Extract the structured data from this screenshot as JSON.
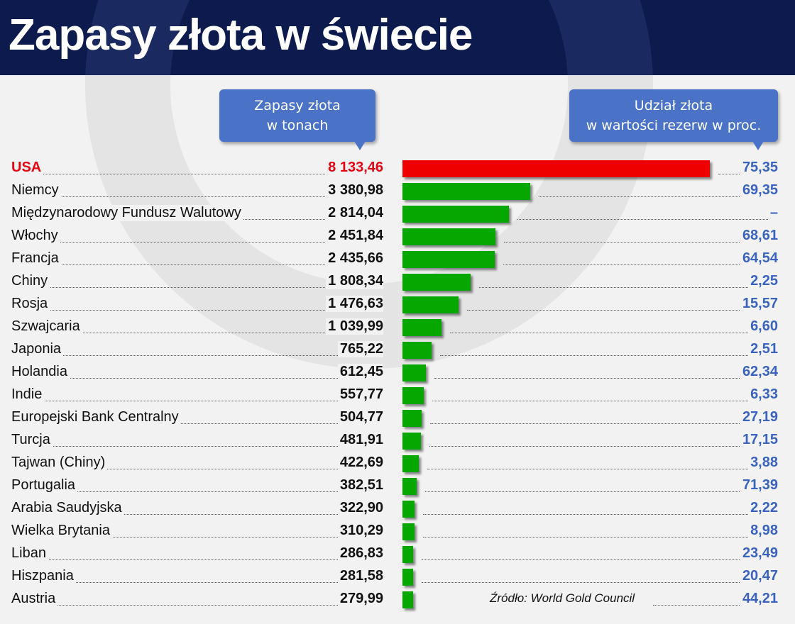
{
  "title": "Zapasy złota w świecie",
  "callouts": {
    "left": [
      "Zapasy złota",
      "w tonach"
    ],
    "right": [
      "Udział złota",
      "w wartości rezerw w proc."
    ]
  },
  "source": "Źródło: World Gold Council",
  "colors": {
    "header_bg": "#0d1a4e",
    "bar_default": "#06a800",
    "bar_highlight": "#ee0000",
    "highlight_text": "#e30613",
    "share_text": "#3a63c0",
    "callout_bg": "#4a73c8"
  },
  "chart_data": {
    "type": "bar",
    "orientation": "horizontal",
    "categories": [
      "USA",
      "Niemcy",
      "Międzynarodowy Fundusz Walutowy",
      "Włochy",
      "Francja",
      "Chiny",
      "Rosja",
      "Szwajcaria",
      "Japonia",
      "Holandia",
      "Indie",
      "Europejski Bank Centralny",
      "Turcja",
      "Tajwan (Chiny)",
      "Portugalia",
      "Arabia Saudyjska",
      "Wielka Brytania",
      "Liban",
      "Hiszpania",
      "Austria"
    ],
    "series": [
      {
        "values": [
          8133.46,
          3380.98,
          2814.04,
          2451.84,
          2435.66,
          1808.34,
          1476.63,
          1039.99,
          765.22,
          612.45,
          557.77,
          504.77,
          481.91,
          422.69,
          382.51,
          322.9,
          310.29,
          286.83,
          281.58,
          279.99
        ],
        "labels": [
          "8 133,46",
          "3 380,98",
          "2 814,04",
          "2 451,84",
          "2 435,66",
          "1 808,34",
          "1 476,63",
          "1 039,99",
          "765,22",
          "612,45",
          "557,77",
          "504,77",
          "481,91",
          "422,69",
          "382,51",
          "322,90",
          "310,29",
          "286,83",
          "281,58",
          "279,99"
        ]
      },
      {
        "values": [
          75.35,
          69.35,
          null,
          68.61,
          64.54,
          2.25,
          15.57,
          6.6,
          2.51,
          62.34,
          6.33,
          27.19,
          17.15,
          3.88,
          71.39,
          2.22,
          8.98,
          23.49,
          20.47,
          44.21
        ],
        "labels": [
          "75,35",
          "69,35",
          "–",
          "68,61",
          "64,54",
          "2,25",
          "15,57",
          "6,60",
          "2,51",
          "62,34",
          "6,33",
          "27,19",
          "17,15",
          "3,88",
          "71,39",
          "2,22",
          "8,98",
          "23,49",
          "20,47",
          "44,21"
        ]
      }
    ],
    "highlight_index": 0,
    "axis": {
      "min": 0,
      "max": 8133.46
    },
    "grid": false,
    "legend": "none"
  }
}
